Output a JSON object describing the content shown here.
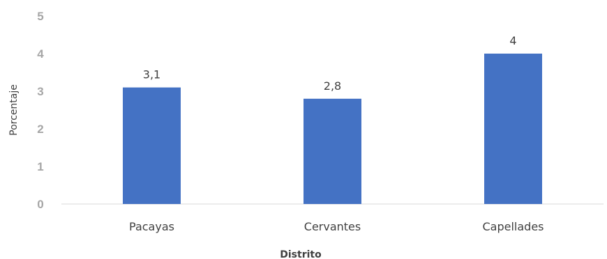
{
  "chart_data": {
    "type": "bar",
    "categories": [
      "Pacayas",
      "Cervantes",
      "Capellades"
    ],
    "values": [
      3.1,
      2.8,
      4
    ],
    "value_labels": [
      "3,1",
      "2,8",
      "4"
    ],
    "xlabel": "Distrito",
    "ylabel": "Porcentaje",
    "ylim": [
      0,
      5
    ],
    "yticks": [
      "0",
      "1",
      "2",
      "3",
      "4",
      "5"
    ],
    "grid": false,
    "legend": "none",
    "bar_color": "#4472c4",
    "axis_color": "#d9d9d9"
  }
}
